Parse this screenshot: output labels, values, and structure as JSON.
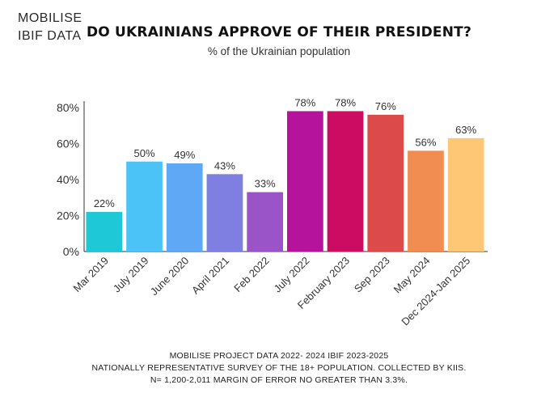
{
  "brand": {
    "line1": "MOBILISE",
    "line2": "IBIF DATA"
  },
  "chart_data": {
    "type": "bar",
    "title": "DO UKRAINIANS APPROVE OF THEIR PRESIDENT?",
    "subtitle": "% of the Ukrainian population",
    "xlabel": "",
    "ylabel": "",
    "ylim": [
      0,
      80
    ],
    "yticks": [
      "0%",
      "20%",
      "40%",
      "60%",
      "80%"
    ],
    "ytick_values": [
      0,
      20,
      40,
      60,
      80
    ],
    "grid": false,
    "categories": [
      "Mar 2019",
      "July 2019",
      "June 2020",
      "April 2021",
      "Feb 2022",
      "July 2022",
      "February 2023",
      "Sep 2023",
      "May 2024",
      "Dec 2024-Jan 2025"
    ],
    "values": [
      22,
      50,
      49,
      43,
      33,
      78,
      78,
      76,
      56,
      63
    ],
    "value_labels": [
      "22%",
      "50%",
      "49%",
      "43%",
      "33%",
      "78%",
      "78%",
      "76%",
      "56%",
      "63%"
    ],
    "colors": [
      "#1ec8d6",
      "#4cc3f7",
      "#5fa8f5",
      "#7e7fe0",
      "#9b54c8",
      "#b5139c",
      "#cc0c62",
      "#dc4b4a",
      "#f28d52",
      "#fec776"
    ]
  },
  "footer": {
    "line1": "MOBILISE PROJECT DATA 2022- 2024 IBIF 2023-2025",
    "line2": "NATIONALLY REPRESENTATIVE SURVEY  OF THE 18+ POPULATION. COLLECTED BY KIIS.",
    "line3": "N= 1,200-2,011 MARGIN OF ERROR NO GREATER THAN 3.3%."
  }
}
